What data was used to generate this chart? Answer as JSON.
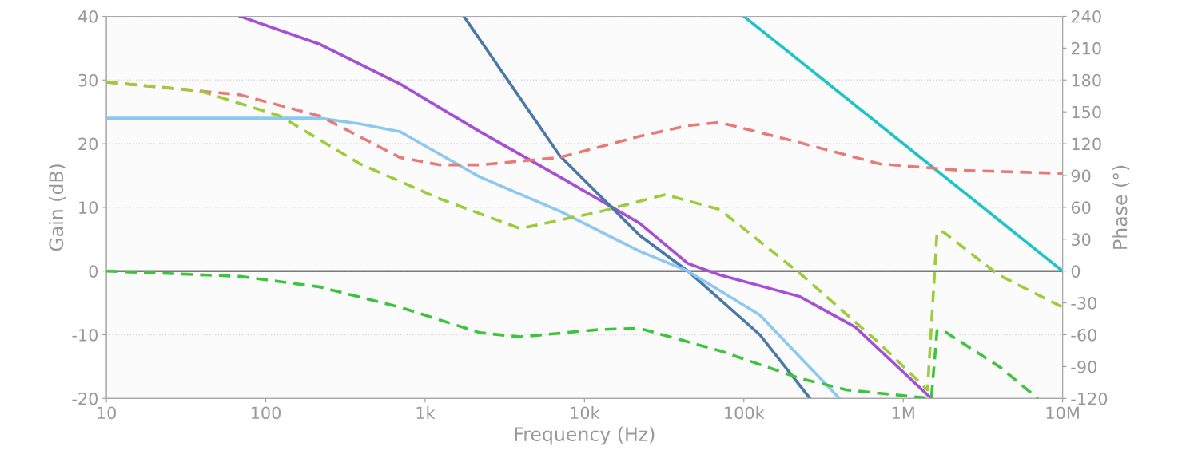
{
  "chart_data": {
    "type": "line",
    "xlabel": "Frequency (Hz)",
    "ylabel": "Gain (dB)",
    "y2label": "Phase (°)",
    "log": "x",
    "grid": "y",
    "marker": "none",
    "xlim": [
      10,
      10000000
    ],
    "xticks": [
      {
        "value": 10,
        "label": "10"
      },
      {
        "value": 100,
        "label": "100"
      },
      {
        "value": 1000,
        "label": "1k"
      },
      {
        "value": 10000,
        "label": "10k"
      },
      {
        "value": 100000,
        "label": "100k"
      },
      {
        "value": 1000000,
        "label": "1M"
      },
      {
        "value": 10000000,
        "label": "10M"
      }
    ],
    "ylim": [
      -20,
      40
    ],
    "yticks": [
      -20,
      -10,
      0,
      10,
      20,
      30,
      40
    ],
    "y2lim": [
      -120,
      240
    ],
    "y2ticks": [
      -120,
      -90,
      -60,
      -30,
      0,
      30,
      60,
      90,
      120,
      150,
      180,
      210,
      240
    ],
    "ref_lines": [
      {
        "axis": "y",
        "value": 0,
        "color": "#000000",
        "line_style": "solid"
      }
    ],
    "series": [
      {
        "color": "#a64fd6",
        "line_style": "solid",
        "x": [
          69,
          219,
          694,
          2200,
          7000,
          22200,
          44500,
          70500,
          224000,
          500000,
          1500000
        ],
        "values": [
          40,
          35.6,
          29.4,
          21.9,
          14.8,
          7.5,
          1.2,
          -0.6,
          -4,
          -8.8,
          -20
        ]
      },
      {
        "color": "#4a78a8",
        "line_style": "solid",
        "x": [
          1750,
          7000,
          22200,
          44500,
          126000,
          260000
        ],
        "values": [
          40,
          18.1,
          5.6,
          0,
          -10,
          -20
        ]
      },
      {
        "color": "#8cc8f0",
        "line_style": "solid",
        "x": [
          10,
          100,
          219,
          390,
          694,
          2200,
          7000,
          22200,
          44500,
          126000,
          398000
        ],
        "values": [
          24,
          24,
          24,
          23.1,
          21.9,
          14.8,
          9.4,
          3.1,
          0,
          -6.9,
          -20
        ]
      },
      {
        "color": "#1cc3c8",
        "line_style": "solid",
        "x": [
          100000,
          10000000
        ],
        "values": [
          40,
          0
        ]
      },
      {
        "color": "#e87a78",
        "line_style": "dashed",
        "axis": "y2",
        "x": [
          10,
          69,
          219,
          694,
          1240,
          2200,
          7000,
          22200,
          44500,
          70500,
          224000,
          708000,
          2240000,
          10000000
        ],
        "values": [
          178,
          166,
          146,
          107,
          100,
          100,
          107,
          127,
          137,
          140,
          121,
          101,
          95,
          92
        ]
      },
      {
        "color": "#9ccc3a",
        "line_style": "dashed",
        "axis": "y2",
        "x": [
          10,
          38,
          123,
          390,
          1240,
          3950,
          12500,
          32000,
          70500,
          224000,
          708000,
          1420000,
          1630000,
          1780000,
          4000000,
          10000000
        ],
        "values": [
          178,
          170,
          146,
          101,
          68,
          40,
          56,
          72,
          58,
          -2,
          -68,
          -112,
          37,
          37,
          -4,
          -34
        ]
      },
      {
        "color": "#3cc43c",
        "line_style": "dashed",
        "axis": "y2",
        "x": [
          10,
          69,
          219,
          694,
          2200,
          3950,
          12500,
          22200,
          70500,
          224000,
          445000,
          1500000,
          1630000,
          1780000,
          4000000,
          7000000
        ],
        "values": [
          0,
          -5,
          -15,
          -34,
          -58,
          -62,
          -55,
          -54,
          -75,
          -101,
          -112,
          -120,
          -56,
          -56,
          -90,
          -120
        ]
      }
    ]
  }
}
